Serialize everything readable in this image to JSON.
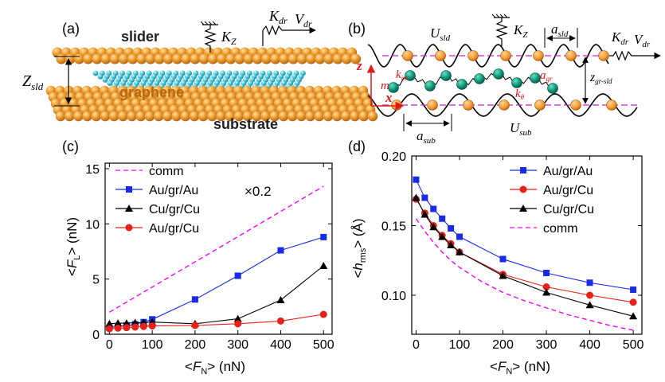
{
  "panels": {
    "a": {
      "label": "(a)",
      "slider": "slider",
      "graphene": "graphene",
      "substrate": "substrate",
      "kz": "K",
      "kz_sub": "Z",
      "kdr": "K",
      "kdr_sub": "dr",
      "vdr": "V",
      "vdr_sub": "dr",
      "zsld": "Z",
      "zsld_sub": "sld"
    },
    "b": {
      "label": "(b)",
      "usld": "U",
      "usld_sub": "sld",
      "kz": "K",
      "kz_sub": "Z",
      "asld": "a",
      "asld_sub": "sld",
      "kdr": "K",
      "kdr_sub": "dr",
      "vdr": "V",
      "vdr_sub": "dr",
      "z_axis": "z",
      "x_axis": "x",
      "m": "m",
      "kint": "k",
      "kint_sub": "int",
      "agr": "a",
      "agr_sub": "gr",
      "ktheta": "k",
      "ktheta_sub": "θ",
      "zgr": "z",
      "zgr_sub": "gr-sld",
      "asub": "a",
      "asub_sub": "sub",
      "usub": "U",
      "usub_sub": "sub"
    }
  },
  "chart_data": [
    {
      "panel": "(c)",
      "type": "line",
      "xlabel_pre": "<",
      "xlabel_sym": "F",
      "xlabel_sub": "N",
      "xlabel_post": "> (nN)",
      "ylabel_pre": "<",
      "ylabel_sym": "F",
      "ylabel_sub": "L",
      "ylabel_post": "> (nN)",
      "xlim": [
        -10,
        520
      ],
      "ylim": [
        0,
        15.5
      ],
      "xticks": [
        0,
        100,
        200,
        300,
        400,
        500
      ],
      "yticks": [
        0,
        5,
        10,
        15
      ],
      "annotation": "×0.2",
      "legend_position": "top-left",
      "series": [
        {
          "name": "comm",
          "style": "dashed",
          "color": "#ff00ff",
          "marker": "none",
          "x": [
            0,
            500
          ],
          "y": [
            2.0,
            13.4
          ]
        },
        {
          "name": "Au/gr/Au",
          "style": "solid",
          "color": "#1a2be8",
          "marker": "square",
          "x": [
            0,
            20,
            40,
            60,
            80,
            100,
            200,
            300,
            400,
            500
          ],
          "y": [
            0.6,
            0.7,
            0.8,
            0.9,
            1.1,
            1.35,
            3.15,
            5.3,
            7.6,
            8.8
          ]
        },
        {
          "name": "Cu/gr/Cu",
          "style": "solid",
          "color": "#000000",
          "marker": "triangle",
          "x": [
            0,
            20,
            40,
            60,
            80,
            100,
            200,
            300,
            400,
            500
          ],
          "y": [
            0.95,
            1.0,
            1.0,
            1.05,
            1.05,
            1.1,
            0.95,
            1.4,
            3.1,
            6.2
          ]
        },
        {
          "name": "Au/gr/Cu",
          "style": "solid",
          "color": "#e8201a",
          "marker": "circle",
          "x": [
            0,
            20,
            40,
            60,
            80,
            100,
            200,
            300,
            400,
            500
          ],
          "y": [
            0.5,
            0.55,
            0.6,
            0.65,
            0.7,
            0.75,
            0.8,
            0.95,
            1.2,
            1.8
          ]
        }
      ]
    },
    {
      "panel": "(d)",
      "type": "line",
      "xlabel_pre": "<",
      "xlabel_sym": "F",
      "xlabel_sub": "N",
      "xlabel_post": "> (nN)",
      "ylabel_pre": "<",
      "ylabel_sym": "h",
      "ylabel_sub": "rms",
      "ylabel_post": "> (Å)",
      "xlim": [
        -10,
        520
      ],
      "ylim": [
        0.072,
        0.2
      ],
      "xticks": [
        0,
        100,
        200,
        300,
        400,
        500
      ],
      "yticks": [
        0.1,
        0.15,
        0.2
      ],
      "ytick_labels": [
        "0.10",
        "0.15",
        "0.20"
      ],
      "legend_position": "top-right",
      "series": [
        {
          "name": "Au/gr/Au",
          "style": "solid",
          "color": "#1a2be8",
          "marker": "square",
          "x": [
            0,
            20,
            40,
            60,
            80,
            100,
            200,
            300,
            400,
            500
          ],
          "y": [
            0.183,
            0.17,
            0.162,
            0.155,
            0.148,
            0.142,
            0.126,
            0.116,
            0.109,
            0.104
          ]
        },
        {
          "name": "Au/gr/Cu",
          "style": "solid",
          "color": "#e8201a",
          "marker": "circle",
          "x": [
            0,
            20,
            40,
            60,
            80,
            100,
            200,
            300,
            400,
            500
          ],
          "y": [
            0.169,
            0.159,
            0.15,
            0.143,
            0.137,
            0.131,
            0.115,
            0.106,
            0.1,
            0.095
          ]
        },
        {
          "name": "Cu/gr/Cu",
          "style": "solid",
          "color": "#000000",
          "marker": "triangle",
          "x": [
            0,
            20,
            40,
            60,
            80,
            100,
            200,
            300,
            400,
            500
          ],
          "y": [
            0.17,
            0.158,
            0.149,
            0.142,
            0.136,
            0.131,
            0.114,
            0.102,
            0.093,
            0.085
          ]
        },
        {
          "name": "comm",
          "style": "dashed",
          "color": "#ff00ff",
          "marker": "none",
          "x": [
            0,
            20,
            40,
            60,
            80,
            100,
            150,
            200,
            250,
            300,
            350,
            400,
            450,
            500
          ],
          "y": [
            0.155,
            0.146,
            0.138,
            0.131,
            0.125,
            0.12,
            0.11,
            0.102,
            0.096,
            0.091,
            0.086,
            0.082,
            0.078,
            0.075
          ]
        }
      ]
    }
  ]
}
